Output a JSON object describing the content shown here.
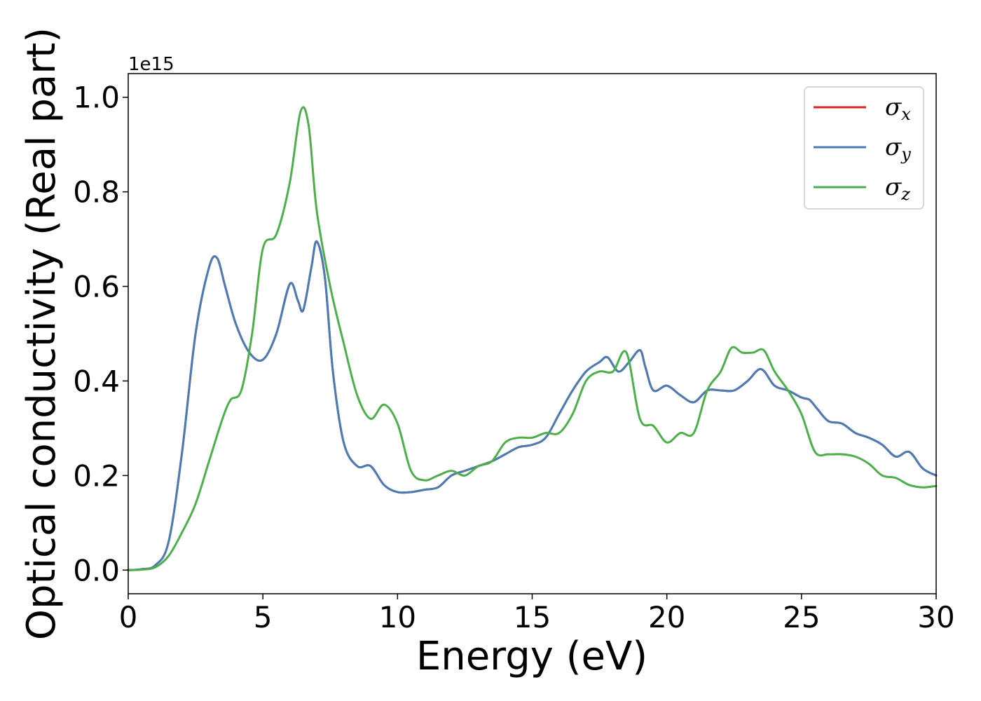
{
  "chart_data": {
    "type": "line",
    "xlabel": "Energy (eV)",
    "ylabel": "Optical conductivity (Real part)",
    "y_offset_label": "1e15",
    "xlim": [
      0,
      30
    ],
    "ylim": [
      -0.05,
      1.05
    ],
    "x_ticks": [
      0,
      5,
      10,
      15,
      20,
      25,
      30
    ],
    "x_tick_labels": [
      "0",
      "5",
      "10",
      "15",
      "20",
      "25",
      "30"
    ],
    "y_ticks": [
      0.0,
      0.2,
      0.4,
      0.6,
      0.8,
      1.0
    ],
    "y_tick_labels": [
      "0.0",
      "0.2",
      "0.4",
      "0.6",
      "0.8",
      "1.0"
    ],
    "grid": false,
    "legend_position": "top-right",
    "series": [
      {
        "name": "σx",
        "symbol": "σ",
        "subscript": "x",
        "color": "#d62728",
        "x": [
          0,
          0.5,
          1.0,
          1.5,
          2.0,
          2.5,
          3.0,
          3.3,
          3.6,
          4.0,
          4.5,
          5.0,
          5.5,
          6.0,
          6.3,
          6.5,
          6.8,
          7.0,
          7.3,
          7.6,
          8.0,
          8.5,
          9.0,
          9.5,
          10.0,
          10.5,
          11.0,
          11.5,
          12.0,
          12.5,
          13.0,
          13.5,
          14.0,
          14.5,
          15.0,
          15.5,
          16.0,
          16.5,
          17.0,
          17.5,
          17.8,
          18.2,
          18.6,
          19.0,
          19.2,
          19.5,
          20.0,
          20.5,
          21.0,
          21.5,
          22.0,
          22.5,
          23.0,
          23.5,
          24.0,
          24.5,
          25.0,
          25.3,
          25.6,
          26.0,
          26.5,
          27.0,
          27.5,
          28.0,
          28.5,
          29.0,
          29.5,
          30.0
        ],
        "y": [
          0.0,
          0.002,
          0.01,
          0.06,
          0.25,
          0.5,
          0.64,
          0.66,
          0.6,
          0.52,
          0.46,
          0.445,
          0.5,
          0.605,
          0.57,
          0.55,
          0.64,
          0.695,
          0.62,
          0.42,
          0.27,
          0.22,
          0.22,
          0.18,
          0.165,
          0.165,
          0.17,
          0.175,
          0.2,
          0.21,
          0.22,
          0.23,
          0.245,
          0.26,
          0.265,
          0.28,
          0.33,
          0.38,
          0.42,
          0.44,
          0.45,
          0.42,
          0.44,
          0.465,
          0.43,
          0.38,
          0.39,
          0.37,
          0.355,
          0.38,
          0.38,
          0.38,
          0.4,
          0.425,
          0.39,
          0.38,
          0.365,
          0.36,
          0.34,
          0.315,
          0.31,
          0.29,
          0.28,
          0.265,
          0.24,
          0.25,
          0.215,
          0.2
        ]
      },
      {
        "name": "σy",
        "symbol": "σ",
        "subscript": "y",
        "color": "#4a7cb5",
        "x": [
          0,
          0.5,
          1.0,
          1.5,
          2.0,
          2.5,
          3.0,
          3.3,
          3.6,
          4.0,
          4.5,
          5.0,
          5.5,
          6.0,
          6.3,
          6.5,
          6.8,
          7.0,
          7.3,
          7.6,
          8.0,
          8.5,
          9.0,
          9.5,
          10.0,
          10.5,
          11.0,
          11.5,
          12.0,
          12.5,
          13.0,
          13.5,
          14.0,
          14.5,
          15.0,
          15.5,
          16.0,
          16.5,
          17.0,
          17.5,
          17.8,
          18.2,
          18.6,
          19.0,
          19.2,
          19.5,
          20.0,
          20.5,
          21.0,
          21.5,
          22.0,
          22.5,
          23.0,
          23.5,
          24.0,
          24.5,
          25.0,
          25.3,
          25.6,
          26.0,
          26.5,
          27.0,
          27.5,
          28.0,
          28.5,
          29.0,
          29.5,
          30.0
        ],
        "y": [
          0.0,
          0.002,
          0.01,
          0.06,
          0.25,
          0.5,
          0.64,
          0.66,
          0.6,
          0.52,
          0.46,
          0.445,
          0.5,
          0.605,
          0.57,
          0.55,
          0.64,
          0.695,
          0.62,
          0.42,
          0.27,
          0.22,
          0.22,
          0.18,
          0.165,
          0.165,
          0.17,
          0.175,
          0.2,
          0.21,
          0.22,
          0.23,
          0.245,
          0.26,
          0.265,
          0.28,
          0.33,
          0.38,
          0.42,
          0.44,
          0.45,
          0.42,
          0.44,
          0.465,
          0.43,
          0.38,
          0.39,
          0.37,
          0.355,
          0.38,
          0.38,
          0.38,
          0.4,
          0.425,
          0.39,
          0.38,
          0.365,
          0.36,
          0.34,
          0.315,
          0.31,
          0.29,
          0.28,
          0.265,
          0.24,
          0.25,
          0.215,
          0.2
        ]
      },
      {
        "name": "σz",
        "symbol": "σ",
        "subscript": "z",
        "color": "#4daf4a",
        "x": [
          0,
          0.5,
          1.0,
          1.5,
          2.0,
          2.5,
          3.0,
          3.5,
          3.8,
          4.2,
          4.6,
          5.0,
          5.5,
          6.0,
          6.4,
          6.7,
          7.0,
          7.5,
          8.0,
          8.5,
          9.0,
          9.5,
          10.0,
          10.5,
          11.0,
          11.5,
          12.0,
          12.5,
          13.0,
          13.5,
          14.0,
          14.5,
          15.0,
          15.5,
          16.0,
          16.5,
          17.0,
          17.5,
          18.0,
          18.5,
          19.0,
          19.5,
          20.0,
          20.5,
          21.0,
          21.5,
          22.0,
          22.4,
          22.8,
          23.2,
          23.6,
          24.0,
          24.5,
          25.0,
          25.5,
          26.0,
          26.5,
          27.0,
          27.5,
          28.0,
          28.5,
          29.0,
          29.5,
          30.0
        ],
        "y": [
          0.0,
          0.001,
          0.006,
          0.03,
          0.08,
          0.14,
          0.23,
          0.32,
          0.36,
          0.38,
          0.5,
          0.68,
          0.71,
          0.82,
          0.97,
          0.94,
          0.76,
          0.6,
          0.48,
          0.37,
          0.32,
          0.35,
          0.31,
          0.21,
          0.19,
          0.2,
          0.21,
          0.2,
          0.22,
          0.23,
          0.27,
          0.28,
          0.28,
          0.29,
          0.29,
          0.33,
          0.4,
          0.42,
          0.42,
          0.46,
          0.32,
          0.305,
          0.27,
          0.29,
          0.29,
          0.38,
          0.42,
          0.47,
          0.46,
          0.46,
          0.465,
          0.42,
          0.38,
          0.33,
          0.25,
          0.245,
          0.245,
          0.24,
          0.225,
          0.2,
          0.195,
          0.18,
          0.175,
          0.178
        ]
      }
    ]
  }
}
